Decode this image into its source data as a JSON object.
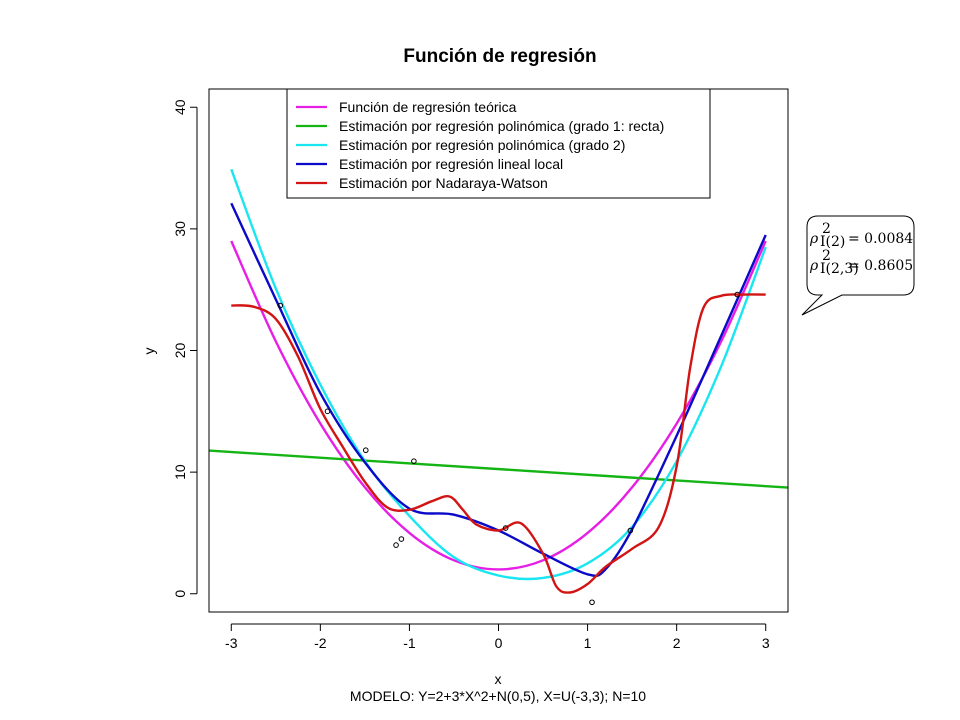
{
  "chart_data": {
    "type": "line",
    "title": "Función de regresión",
    "xlabel": "x",
    "ylabel": "y",
    "caption": "MODELO: Y=2+3*X^2+N(0,5), X=U(-3,3);  N=10",
    "xlim": [
      -3.25,
      3.25
    ],
    "ylim": [
      -1.5,
      41.5
    ],
    "x_ticks": [
      -3,
      -2,
      -1,
      0,
      1,
      2,
      3
    ],
    "y_ticks": [
      0,
      10,
      20,
      30,
      40
    ],
    "legend_position": "top",
    "points": [
      [
        -2.45,
        23.7
      ],
      [
        -1.92,
        15.0
      ],
      [
        -1.49,
        11.8
      ],
      [
        -0.95,
        10.9
      ],
      [
        -1.15,
        4.0
      ],
      [
        -1.09,
        4.5
      ],
      [
        0.08,
        5.4
      ],
      [
        1.05,
        -0.7
      ],
      [
        1.48,
        5.2
      ],
      [
        2.68,
        24.6
      ]
    ],
    "series": [
      {
        "name": "Función de regresión teórica",
        "color": "#e61ee6",
        "x": [
          -3,
          -2.5,
          -2,
          -1.5,
          -1,
          -0.5,
          0,
          0.5,
          1,
          1.5,
          2,
          2.5,
          3
        ],
        "y": [
          29,
          20.75,
          14,
          8.75,
          5,
          2.75,
          2,
          2.75,
          5,
          8.75,
          14,
          20.75,
          29
        ]
      },
      {
        "name": "Estimación por regresión polinómica (grado 1: recta)",
        "color": "#14b414",
        "x": [
          -3.25,
          3.25
        ],
        "y": [
          11.77,
          8.73
        ]
      },
      {
        "name": "Estimación por regresión polinómica (grado 2)",
        "color": "#19e6f0",
        "x": [
          -3,
          -2.5,
          -2,
          -1.5,
          -1,
          -0.5,
          0,
          0.5,
          1,
          1.5,
          2,
          2.5,
          3
        ],
        "y": [
          34.9,
          25.1,
          17.2,
          10.9,
          6.4,
          3.0,
          1.5,
          1.3,
          2.5,
          5.5,
          10.9,
          18.7,
          28.5
        ]
      },
      {
        "name": "Estimación por regresión lineal local",
        "color": "#0a0ac8",
        "x": [
          -3,
          -2.5,
          -2,
          -1.5,
          -1,
          -0.5,
          0,
          0.5,
          1,
          1.2,
          1.5,
          2,
          2.5,
          3
        ],
        "y": [
          32.1,
          24.2,
          16.5,
          10.8,
          7.0,
          6.5,
          5.2,
          3.3,
          1.6,
          2.0,
          5.3,
          13.0,
          21.2,
          29.5
        ]
      },
      {
        "name": "Estimación por Nadaraya-Watson",
        "color": "#d21414",
        "x": [
          -3,
          -2.75,
          -2.5,
          -2.25,
          -2,
          -1.75,
          -1.5,
          -1.25,
          -1,
          -0.75,
          -0.55,
          -0.4,
          -0.25,
          0,
          0.25,
          0.5,
          0.65,
          0.8,
          1.0,
          1.2,
          1.5,
          1.8,
          2.0,
          2.15,
          2.3,
          2.5,
          2.75,
          3
        ],
        "y": [
          23.7,
          23.6,
          22.6,
          19.5,
          15.2,
          12.1,
          9.2,
          7.1,
          6.9,
          7.6,
          8.0,
          6.9,
          5.7,
          5.2,
          5.8,
          3.3,
          0.6,
          0.1,
          0.8,
          2.2,
          3.7,
          5.5,
          10.5,
          18.5,
          23.5,
          24.5,
          24.6,
          24.6
        ]
      }
    ]
  },
  "annotation": {
    "r2_rows": [
      {
        "value": "= 0.0084"
      },
      {
        "value": "= 0.8605"
      }
    ]
  }
}
